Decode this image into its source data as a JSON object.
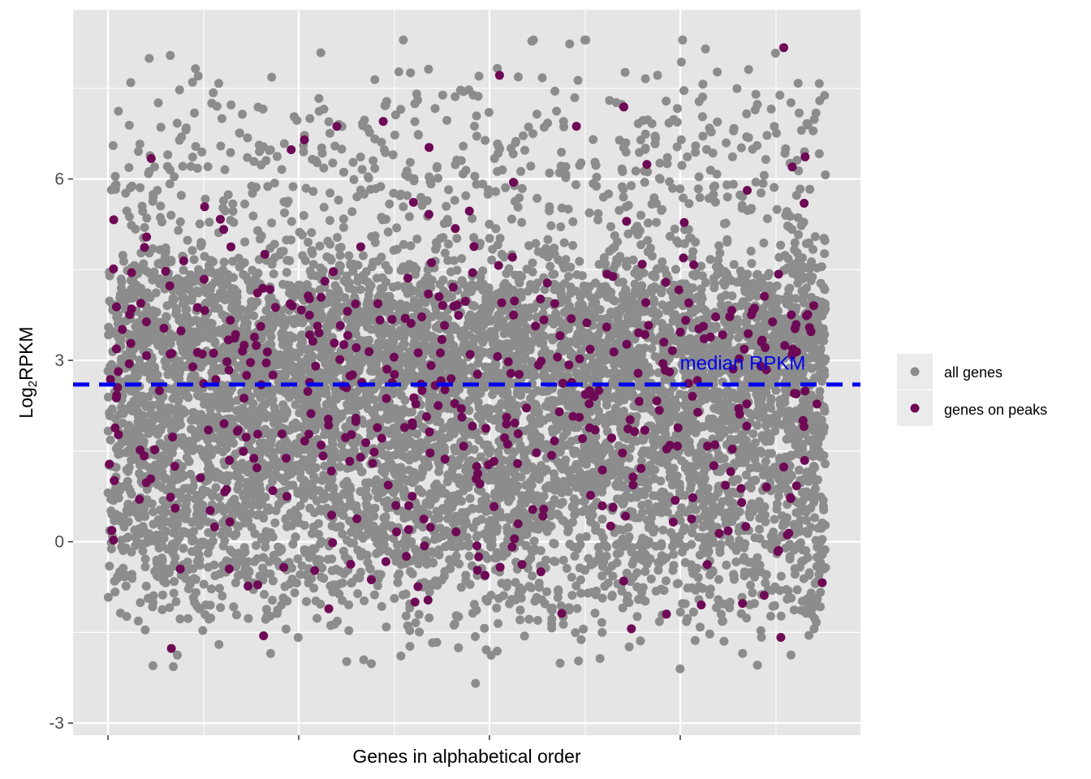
{
  "chart_data": {
    "type": "scatter",
    "title": "",
    "xlabel": "Genes in alphabetical order",
    "ylabel": {
      "base": "Log",
      "subscript": "2",
      "rest": "RPKM"
    },
    "ylim": [
      -3.2,
      8.8
    ],
    "yticks": [
      -3,
      0,
      3,
      6
    ],
    "ytick_labels": [
      "-3",
      "0",
      "3",
      "6"
    ],
    "x_ticks_labeled": false,
    "grid": true,
    "legend_position": "right",
    "colors": {
      "panel": "#e5e5e5",
      "grid": "#ffffff",
      "all_genes": "#8c8c8c",
      "genes_on_peaks": "#6e0a55",
      "median_line": "#0000ee"
    },
    "series": [
      {
        "name": "all genes",
        "points": "approximately 7500 genes, log2 RPKM mostly between -1 and 5.5, total range about -2.7 to 8.3"
      },
      {
        "name": "genes on peaks",
        "points": "approximately 450 genes spread across the same range"
      }
    ],
    "reference_lines": [
      {
        "type": "hline",
        "y": 2.6,
        "style": "dashed",
        "label": "median RPKM"
      }
    ],
    "legend": {
      "entries": [
        "all genes",
        "genes on peaks"
      ]
    }
  }
}
